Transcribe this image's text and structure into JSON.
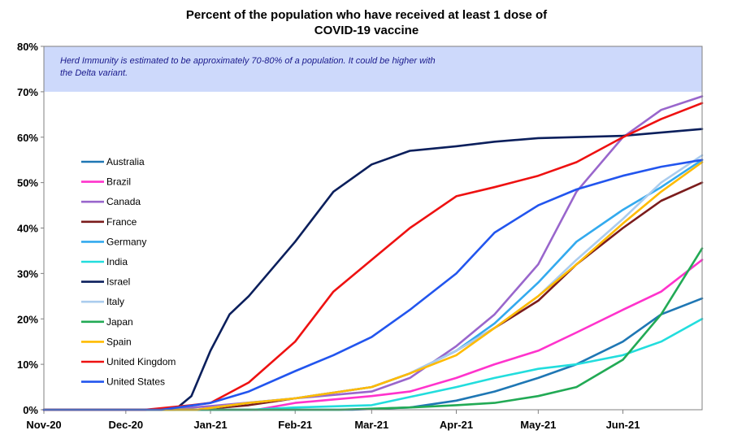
{
  "chart_data": {
    "type": "line",
    "title_lines": [
      "Percent of the population who have received at least 1 dose of",
      "COVID-19 vaccine"
    ],
    "annotation_lines": [
      "Herd Immunity is estimated to be approximately 70-80% of a population. It could be higher with",
      "the Delta variant."
    ],
    "annotation_band": [
      70,
      80
    ],
    "x_ticks": [
      {
        "date": "2020-11-01",
        "label": "Nov-20"
      },
      {
        "date": "2020-12-01",
        "label": "Dec-20"
      },
      {
        "date": "2021-01-01",
        "label": "Jan-21"
      },
      {
        "date": "2021-02-01",
        "label": "Feb-21"
      },
      {
        "date": "2021-03-01",
        "label": "Mar-21"
      },
      {
        "date": "2021-04-01",
        "label": "Apr-21"
      },
      {
        "date": "2021-05-01",
        "label": "May-21"
      },
      {
        "date": "2021-06-01",
        "label": "Jun-21"
      }
    ],
    "xlim": [
      "2020-11-01",
      "2021-06-30"
    ],
    "ylim": [
      0,
      80
    ],
    "y_ticks": [
      "0%",
      "10%",
      "20%",
      "30%",
      "40%",
      "50%",
      "60%",
      "70%",
      "80%"
    ],
    "legend_position": "left",
    "series": [
      {
        "name": "Australia",
        "color": "#1f77b4",
        "points": [
          [
            "2021-02-22",
            0
          ],
          [
            "2021-03-15",
            0.5
          ],
          [
            "2021-04-01",
            2
          ],
          [
            "2021-04-15",
            4
          ],
          [
            "2021-05-01",
            7
          ],
          [
            "2021-05-15",
            10
          ],
          [
            "2021-06-01",
            15
          ],
          [
            "2021-06-15",
            21
          ],
          [
            "2021-06-30",
            24.5
          ]
        ]
      },
      {
        "name": "Brazil",
        "color": "#ff33cc",
        "points": [
          [
            "2021-01-18",
            0
          ],
          [
            "2021-02-01",
            1.5
          ],
          [
            "2021-03-01",
            3
          ],
          [
            "2021-03-15",
            4
          ],
          [
            "2021-04-01",
            7
          ],
          [
            "2021-04-15",
            10
          ],
          [
            "2021-05-01",
            13
          ],
          [
            "2021-05-15",
            17
          ],
          [
            "2021-06-01",
            22
          ],
          [
            "2021-06-15",
            26
          ],
          [
            "2021-06-30",
            33
          ]
        ]
      },
      {
        "name": "Canada",
        "color": "#9966cc",
        "points": [
          [
            "2020-12-15",
            0
          ],
          [
            "2021-01-01",
            0.8
          ],
          [
            "2021-02-01",
            2.5
          ],
          [
            "2021-03-01",
            4
          ],
          [
            "2021-03-15",
            7
          ],
          [
            "2021-04-01",
            14
          ],
          [
            "2021-04-15",
            21
          ],
          [
            "2021-05-01",
            32
          ],
          [
            "2021-05-15",
            48
          ],
          [
            "2021-06-01",
            60
          ],
          [
            "2021-06-15",
            66
          ],
          [
            "2021-06-30",
            69
          ]
        ]
      },
      {
        "name": "France",
        "color": "#7b1c1c",
        "points": [
          [
            "2020-12-27",
            0
          ],
          [
            "2021-01-15",
            1
          ],
          [
            "2021-02-01",
            2.5
          ],
          [
            "2021-03-01",
            5
          ],
          [
            "2021-03-15",
            8
          ],
          [
            "2021-04-01",
            13
          ],
          [
            "2021-04-15",
            18
          ],
          [
            "2021-05-01",
            24
          ],
          [
            "2021-05-15",
            32
          ],
          [
            "2021-06-01",
            40
          ],
          [
            "2021-06-15",
            46
          ],
          [
            "2021-06-30",
            50
          ]
        ]
      },
      {
        "name": "Germany",
        "color": "#33aaee",
        "points": [
          [
            "2020-12-27",
            0
          ],
          [
            "2021-01-15",
            1.5
          ],
          [
            "2021-02-01",
            2.5
          ],
          [
            "2021-03-01",
            5
          ],
          [
            "2021-03-15",
            8
          ],
          [
            "2021-04-01",
            13
          ],
          [
            "2021-04-15",
            19
          ],
          [
            "2021-05-01",
            28
          ],
          [
            "2021-05-15",
            37
          ],
          [
            "2021-06-01",
            44
          ],
          [
            "2021-06-15",
            49
          ],
          [
            "2021-06-30",
            55
          ]
        ]
      },
      {
        "name": "India",
        "color": "#22dddd",
        "points": [
          [
            "2021-01-16",
            0
          ],
          [
            "2021-02-01",
            0.5
          ],
          [
            "2021-03-01",
            1
          ],
          [
            "2021-04-01",
            5
          ],
          [
            "2021-04-15",
            7
          ],
          [
            "2021-05-01",
            9
          ],
          [
            "2021-05-15",
            10
          ],
          [
            "2021-06-01",
            12
          ],
          [
            "2021-06-15",
            15
          ],
          [
            "2021-06-30",
            20
          ]
        ]
      },
      {
        "name": "Israel",
        "color": "#0b1f5c",
        "points": [
          [
            "2020-12-19",
            0
          ],
          [
            "2020-12-25",
            3
          ],
          [
            "2021-01-01",
            13
          ],
          [
            "2021-01-08",
            21
          ],
          [
            "2021-01-15",
            25
          ],
          [
            "2021-02-01",
            37
          ],
          [
            "2021-02-15",
            48
          ],
          [
            "2021-03-01",
            54
          ],
          [
            "2021-03-15",
            57
          ],
          [
            "2021-04-01",
            58
          ],
          [
            "2021-04-15",
            59
          ],
          [
            "2021-05-01",
            59.8
          ],
          [
            "2021-06-01",
            60.3
          ],
          [
            "2021-06-30",
            61.8
          ]
        ]
      },
      {
        "name": "Italy",
        "color": "#aaccee",
        "points": [
          [
            "2020-12-27",
            0
          ],
          [
            "2021-01-15",
            1.5
          ],
          [
            "2021-02-01",
            2.5
          ],
          [
            "2021-03-01",
            5
          ],
          [
            "2021-03-15",
            8
          ],
          [
            "2021-04-01",
            13
          ],
          [
            "2021-04-15",
            18
          ],
          [
            "2021-05-01",
            25
          ],
          [
            "2021-05-15",
            33
          ],
          [
            "2021-06-01",
            42
          ],
          [
            "2021-06-15",
            50
          ],
          [
            "2021-06-30",
            56
          ]
        ]
      },
      {
        "name": "Japan",
        "color": "#22aa55",
        "points": [
          [
            "2021-02-17",
            0
          ],
          [
            "2021-03-15",
            0.5
          ],
          [
            "2021-04-01",
            1
          ],
          [
            "2021-04-15",
            1.5
          ],
          [
            "2021-05-01",
            3
          ],
          [
            "2021-05-15",
            5
          ],
          [
            "2021-06-01",
            11
          ],
          [
            "2021-06-15",
            21
          ],
          [
            "2021-06-30",
            35.5
          ]
        ]
      },
      {
        "name": "Spain",
        "color": "#ffbb00",
        "points": [
          [
            "2020-12-27",
            0
          ],
          [
            "2021-01-15",
            1.5
          ],
          [
            "2021-02-01",
            2.5
          ],
          [
            "2021-03-01",
            5
          ],
          [
            "2021-03-15",
            8
          ],
          [
            "2021-04-01",
            12
          ],
          [
            "2021-04-15",
            18
          ],
          [
            "2021-05-01",
            25
          ],
          [
            "2021-05-15",
            32
          ],
          [
            "2021-06-01",
            41
          ],
          [
            "2021-06-15",
            48
          ],
          [
            "2021-06-30",
            54.5
          ]
        ]
      },
      {
        "name": "United Kingdom",
        "color": "#ee1111",
        "points": [
          [
            "2020-12-08",
            0
          ],
          [
            "2020-12-25",
            1
          ],
          [
            "2021-01-01",
            1.5
          ],
          [
            "2021-01-15",
            6
          ],
          [
            "2021-02-01",
            15
          ],
          [
            "2021-02-15",
            26
          ],
          [
            "2021-03-01",
            33
          ],
          [
            "2021-03-15",
            40
          ],
          [
            "2021-04-01",
            47
          ],
          [
            "2021-04-15",
            49
          ],
          [
            "2021-05-01",
            51.5
          ],
          [
            "2021-05-15",
            54.5
          ],
          [
            "2021-06-01",
            60
          ],
          [
            "2021-06-15",
            64
          ],
          [
            "2021-06-30",
            67.5
          ]
        ]
      },
      {
        "name": "United States",
        "color": "#2255ee",
        "points": [
          [
            "2020-12-14",
            0
          ],
          [
            "2021-01-01",
            1.5
          ],
          [
            "2021-01-15",
            4
          ],
          [
            "2021-02-01",
            8.5
          ],
          [
            "2021-02-15",
            12
          ],
          [
            "2021-03-01",
            16
          ],
          [
            "2021-03-15",
            22
          ],
          [
            "2021-04-01",
            30
          ],
          [
            "2021-04-15",
            39
          ],
          [
            "2021-05-01",
            45
          ],
          [
            "2021-05-15",
            48.5
          ],
          [
            "2021-06-01",
            51.5
          ],
          [
            "2021-06-15",
            53.5
          ],
          [
            "2021-06-30",
            55
          ]
        ]
      }
    ]
  }
}
